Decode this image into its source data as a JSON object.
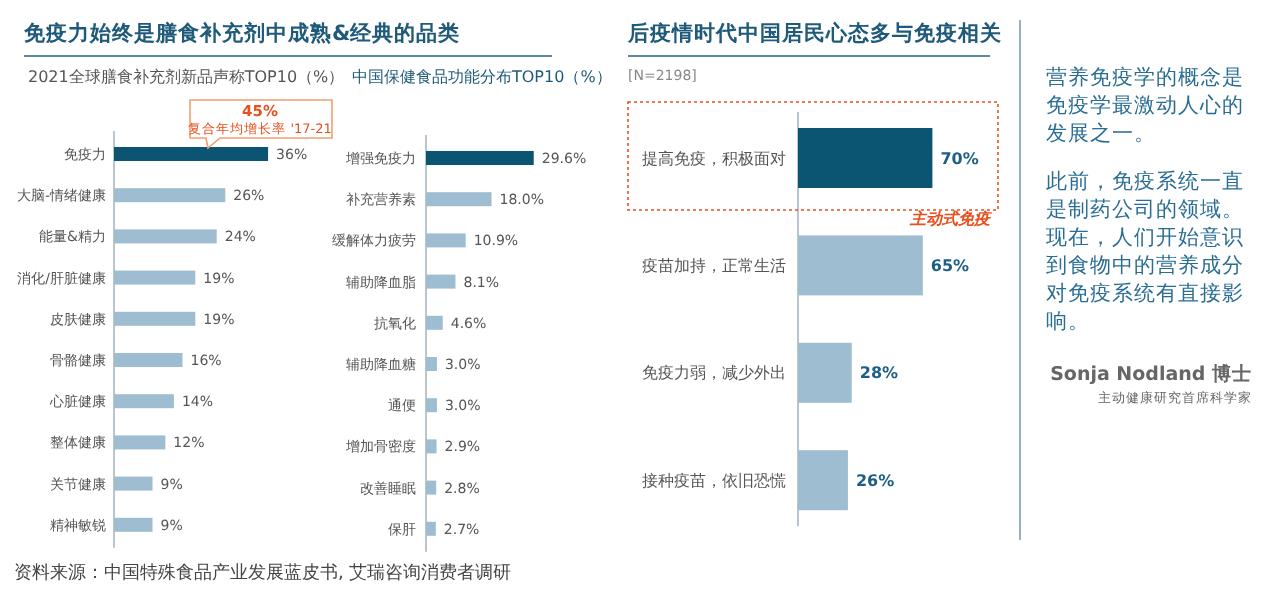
{
  "chart_data": [
    {
      "type": "bar",
      "orientation": "horizontal",
      "title": "免疫力始终是膳食补充剂中成熟&经典的品类",
      "subtitle": "2021全球膳食补充剂新品声称TOP10（%）",
      "categories": [
        "免疫力",
        "大脑-情绪健康",
        "能量&精力",
        "消化/肝脏健康",
        "皮肤健康",
        "骨骼健康",
        "心脏健康",
        "整体健康",
        "关节健康",
        "精神敏锐"
      ],
      "values": [
        36,
        26,
        24,
        19,
        19,
        16,
        14,
        12,
        9,
        9
      ],
      "value_labels": [
        "36%",
        "26%",
        "24%",
        "19%",
        "19%",
        "16%",
        "14%",
        "12%",
        "9%",
        "9%"
      ],
      "colors": [
        "#0b5572",
        "#9fbdd1",
        "#9fbdd1",
        "#9fbdd1",
        "#9fbdd1",
        "#9fbdd1",
        "#9fbdd1",
        "#9fbdd1",
        "#9fbdd1",
        "#9fbdd1"
      ],
      "annotations": [
        "45%",
        "复合年均增长率 '17-21",
        "资料来源：中国特殊食品产业发展蓝皮书, 艾瑞咨询消费者调研"
      ]
    },
    {
      "type": "bar",
      "orientation": "horizontal",
      "title": "中国保健食品功能分布TOP10（%）",
      "categories": [
        "增强免疫力",
        "补充营养素",
        "缓解体力疲劳",
        "辅助降血脂",
        "抗氧化",
        "辅助降血糖",
        "通便",
        "增加骨密度",
        "改善睡眠",
        "保肝"
      ],
      "values": [
        29.6,
        18.0,
        10.9,
        8.1,
        4.6,
        3.0,
        3.0,
        2.9,
        2.8,
        2.7
      ],
      "value_labels": [
        "29.6%",
        "18.0%",
        "10.9%",
        "8.1%",
        "4.6%",
        "3.0%",
        "3.0%",
        "2.9%",
        "2.8%",
        "2.7%"
      ],
      "colors": [
        "#0b5572",
        "#9fbdd1",
        "#9fbdd1",
        "#9fbdd1",
        "#9fbdd1",
        "#9fbdd1",
        "#9fbdd1",
        "#9fbdd1",
        "#9fbdd1",
        "#9fbdd1"
      ]
    },
    {
      "type": "bar",
      "orientation": "horizontal",
      "title": "后疫情时代中国居民心态多与免疫相关",
      "subtitle": "[N=2198]",
      "categories": [
        "提高免疫，积极面对",
        "疫苗加持，正常生活",
        "免疫力弱，减少外出",
        "接种疫苗，依旧恐慌"
      ],
      "values": [
        70,
        65,
        28,
        26
      ],
      "value_labels": [
        "70%",
        "65%",
        "28%",
        "26%"
      ],
      "colors": [
        "#0b5572",
        "#9fbdd1",
        "#9fbdd1",
        "#9fbdd1"
      ],
      "annotations": [
        "主动式免疫"
      ]
    },
    {
      "type": "other",
      "annotations": [
        "营养免疫学的概念是免疫学最激动人心的发展之一。",
        "此前，免疫系统一直是制药公司的领域。现在，人们开始意识到食物中的营养成分对免疫系统有直接影响。",
        "Sonja Nodland 博士",
        "主动健康研究首席科学家"
      ]
    }
  ]
}
